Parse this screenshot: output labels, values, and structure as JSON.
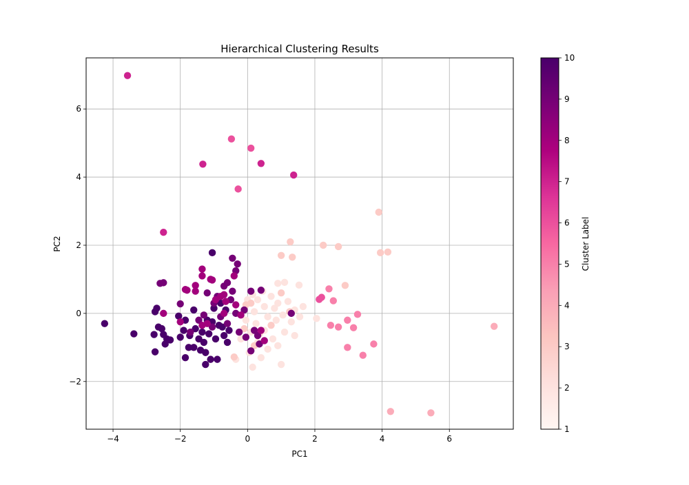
{
  "chart_data": {
    "type": "scatter",
    "title": "Hierarchical Clustering Results",
    "xlabel": "PC1",
    "ylabel": "PC2",
    "xlim": [
      -4.8,
      7.9
    ],
    "ylim": [
      -3.4,
      7.5
    ],
    "xticks": [
      -4,
      -2,
      0,
      2,
      4,
      6
    ],
    "xtick_labels": [
      "−4",
      "−2",
      "0",
      "2",
      "4",
      "6"
    ],
    "yticks": [
      -2,
      0,
      2,
      4,
      6
    ],
    "ytick_labels": [
      "−2",
      "0",
      "2",
      "4",
      "6"
    ],
    "grid": true,
    "colorbar": {
      "label": "Cluster Label",
      "min": 1,
      "max": 10,
      "ticks": [
        1,
        2,
        3,
        4,
        5,
        6,
        7,
        8,
        9,
        10
      ],
      "tick_labels": [
        "1",
        "2",
        "3",
        "4",
        "5",
        "6",
        "7",
        "8",
        "9",
        "10"
      ],
      "colormap": "RdPu",
      "colors": [
        "#fff7f3",
        "#fde0dd",
        "#fcc5c0",
        "#fa9fb5",
        "#f768a1",
        "#dd3497",
        "#ae017e",
        "#7a0177",
        "#49006a"
      ]
    },
    "points": [
      {
        "x": -3.57,
        "y": 6.98,
        "label": 7
      },
      {
        "x": -0.48,
        "y": 5.12,
        "label": 6
      },
      {
        "x": 0.1,
        "y": 4.85,
        "label": 6
      },
      {
        "x": -1.33,
        "y": 4.38,
        "label": 7
      },
      {
        "x": 0.4,
        "y": 4.4,
        "label": 7
      },
      {
        "x": 1.37,
        "y": 4.06,
        "label": 7
      },
      {
        "x": -0.28,
        "y": 3.65,
        "label": 6
      },
      {
        "x": -2.5,
        "y": 2.38,
        "label": 7
      },
      {
        "x": 3.9,
        "y": 2.97,
        "label": 3
      },
      {
        "x": 1.27,
        "y": 2.1,
        "label": 3
      },
      {
        "x": 2.25,
        "y": 2.0,
        "label": 3
      },
      {
        "x": 2.7,
        "y": 1.96,
        "label": 3
      },
      {
        "x": 1.0,
        "y": 1.7,
        "label": 3
      },
      {
        "x": 1.33,
        "y": 1.65,
        "label": 3
      },
      {
        "x": 3.95,
        "y": 1.78,
        "label": 3
      },
      {
        "x": 4.17,
        "y": 1.8,
        "label": 3
      },
      {
        "x": 7.33,
        "y": -0.38,
        "label": 4
      },
      {
        "x": 4.25,
        "y": -2.88,
        "label": 4
      },
      {
        "x": 5.45,
        "y": -2.92,
        "label": 4
      },
      {
        "x": 2.9,
        "y": 0.82,
        "label": 3
      },
      {
        "x": 2.42,
        "y": 0.72,
        "label": 5
      },
      {
        "x": 2.55,
        "y": 0.37,
        "label": 5
      },
      {
        "x": 2.2,
        "y": 0.47,
        "label": 6
      },
      {
        "x": 2.13,
        "y": 0.41,
        "label": 6
      },
      {
        "x": 3.27,
        "y": -0.03,
        "label": 5
      },
      {
        "x": 2.97,
        "y": -0.2,
        "label": 5
      },
      {
        "x": 2.47,
        "y": -0.35,
        "label": 5
      },
      {
        "x": 2.7,
        "y": -0.4,
        "label": 5
      },
      {
        "x": 3.15,
        "y": -0.42,
        "label": 5
      },
      {
        "x": 3.75,
        "y": -0.9,
        "label": 5
      },
      {
        "x": 2.97,
        "y": -1.0,
        "label": 5
      },
      {
        "x": 3.43,
        "y": -1.23,
        "label": 5
      },
      {
        "x": 1.0,
        "y": -1.5,
        "label": 2
      },
      {
        "x": 0.15,
        "y": -1.58,
        "label": 2
      },
      {
        "x": 1.53,
        "y": 0.83,
        "label": 2
      },
      {
        "x": 0.9,
        "y": 0.88,
        "label": 2
      },
      {
        "x": 1.1,
        "y": 0.91,
        "label": 2
      },
      {
        "x": 2.05,
        "y": -0.15,
        "label": 2
      },
      {
        "x": 1.65,
        "y": 0.2,
        "label": 2
      },
      {
        "x": 1.4,
        "y": 0.1,
        "label": 2
      },
      {
        "x": 1.2,
        "y": 0.35,
        "label": 2
      },
      {
        "x": 0.9,
        "y": 0.3,
        "label": 2
      },
      {
        "x": 0.7,
        "y": 0.5,
        "label": 2
      },
      {
        "x": 0.5,
        "y": 0.2,
        "label": 2
      },
      {
        "x": 0.3,
        "y": 0.4,
        "label": 2
      },
      {
        "x": 0.15,
        "y": 0.55,
        "label": 2
      },
      {
        "x": 0.0,
        "y": 0.4,
        "label": 2
      },
      {
        "x": 0.2,
        "y": 0.05,
        "label": 2
      },
      {
        "x": 0.6,
        "y": -0.1,
        "label": 2
      },
      {
        "x": 0.85,
        "y": -0.2,
        "label": 2
      },
      {
        "x": 1.05,
        "y": -0.05,
        "label": 2
      },
      {
        "x": 1.3,
        "y": -0.25,
        "label": 2
      },
      {
        "x": 1.55,
        "y": -0.1,
        "label": 2
      },
      {
        "x": 1.4,
        "y": -0.65,
        "label": 2
      },
      {
        "x": 1.1,
        "y": -0.55,
        "label": 2
      },
      {
        "x": 0.75,
        "y": -0.75,
        "label": 2
      },
      {
        "x": 0.5,
        "y": -0.5,
        "label": 2
      },
      {
        "x": 0.25,
        "y": -0.3,
        "label": 2
      },
      {
        "x": -0.05,
        "y": -0.2,
        "label": 2
      },
      {
        "x": 0.3,
        "y": -0.85,
        "label": 2
      },
      {
        "x": 0.6,
        "y": -1.05,
        "label": 2
      },
      {
        "x": 0.9,
        "y": -0.95,
        "label": 2
      },
      {
        "x": 0.4,
        "y": -1.3,
        "label": 2
      },
      {
        "x": 0.05,
        "y": -1.15,
        "label": 2
      },
      {
        "x": -0.35,
        "y": -1.35,
        "label": 2
      },
      {
        "x": -0.2,
        "y": -0.75,
        "label": 2
      },
      {
        "x": 0.1,
        "y": -0.55,
        "label": 2
      },
      {
        "x": 0.45,
        "y": 0.65,
        "label": 2
      },
      {
        "x": 0.8,
        "y": 0.15,
        "label": 2
      },
      {
        "x": 1.25,
        "y": 0.05,
        "label": 3
      },
      {
        "x": 0.1,
        "y": 0.3,
        "label": 3
      },
      {
        "x": 1.0,
        "y": 0.6,
        "label": 3
      },
      {
        "x": -0.1,
        "y": -0.45,
        "label": 3
      },
      {
        "x": 0.2,
        "y": -0.95,
        "label": 3
      },
      {
        "x": -0.4,
        "y": -1.28,
        "label": 3
      },
      {
        "x": 0.7,
        "y": -0.35,
        "label": 3
      },
      {
        "x": -0.05,
        "y": 0.25,
        "label": 3
      },
      {
        "x": 0.35,
        "y": -0.6,
        "label": 3
      },
      {
        "x": -4.25,
        "y": -0.3,
        "label": 10
      },
      {
        "x": -3.38,
        "y": -0.6,
        "label": 10
      },
      {
        "x": -2.75,
        "y": -1.13,
        "label": 10
      },
      {
        "x": -2.78,
        "y": -0.62,
        "label": 10
      },
      {
        "x": -2.7,
        "y": 0.15,
        "label": 10
      },
      {
        "x": -2.75,
        "y": 0.05,
        "label": 10
      },
      {
        "x": -2.65,
        "y": -0.4,
        "label": 10
      },
      {
        "x": -2.55,
        "y": -0.45,
        "label": 10
      },
      {
        "x": -2.5,
        "y": -0.62,
        "label": 10
      },
      {
        "x": -2.45,
        "y": -0.9,
        "label": 10
      },
      {
        "x": -2.4,
        "y": -0.75,
        "label": 10
      },
      {
        "x": -2.3,
        "y": -0.78,
        "label": 10
      },
      {
        "x": -2.05,
        "y": -0.08,
        "label": 10
      },
      {
        "x": -2.0,
        "y": -0.7,
        "label": 10
      },
      {
        "x": -1.9,
        "y": -0.5,
        "label": 10
      },
      {
        "x": -1.85,
        "y": -0.2,
        "label": 10
      },
      {
        "x": -1.85,
        "y": -1.3,
        "label": 10
      },
      {
        "x": -1.75,
        "y": -1.0,
        "label": 10
      },
      {
        "x": -1.72,
        "y": -0.65,
        "label": 10
      },
      {
        "x": -1.6,
        "y": -1.0,
        "label": 10
      },
      {
        "x": -1.6,
        "y": 0.1,
        "label": 10
      },
      {
        "x": -1.55,
        "y": -0.45,
        "label": 10
      },
      {
        "x": -1.45,
        "y": -0.75,
        "label": 10
      },
      {
        "x": -1.4,
        "y": -1.08,
        "label": 10
      },
      {
        "x": -1.35,
        "y": -0.55,
        "label": 10
      },
      {
        "x": -1.3,
        "y": -0.85,
        "label": 10
      },
      {
        "x": -1.25,
        "y": -1.15,
        "label": 10
      },
      {
        "x": -1.25,
        "y": -1.5,
        "label": 10
      },
      {
        "x": -1.2,
        "y": -0.2,
        "label": 10
      },
      {
        "x": -1.15,
        "y": -0.6,
        "label": 10
      },
      {
        "x": -1.1,
        "y": -1.35,
        "label": 10
      },
      {
        "x": -1.05,
        "y": -0.25,
        "label": 10
      },
      {
        "x": -1.0,
        "y": 0.15,
        "label": 10
      },
      {
        "x": -0.95,
        "y": -0.75,
        "label": 10
      },
      {
        "x": -0.9,
        "y": -1.35,
        "label": 10
      },
      {
        "x": -0.85,
        "y": -0.35,
        "label": 10
      },
      {
        "x": -0.8,
        "y": 0.3,
        "label": 10
      },
      {
        "x": -0.75,
        "y": -0.4,
        "label": 10
      },
      {
        "x": -0.7,
        "y": -0.65,
        "label": 10
      },
      {
        "x": -0.65,
        "y": 0.1,
        "label": 10
      },
      {
        "x": -0.6,
        "y": -0.85,
        "label": 10
      },
      {
        "x": -0.55,
        "y": -0.5,
        "label": 10
      },
      {
        "x": -1.05,
        "y": 1.78,
        "label": 10
      },
      {
        "x": -2.6,
        "y": 0.88,
        "label": 9
      },
      {
        "x": -2.5,
        "y": 0.9,
        "label": 9
      },
      {
        "x": -2.0,
        "y": 0.28,
        "label": 9
      },
      {
        "x": -1.3,
        "y": -0.05,
        "label": 9
      },
      {
        "x": -1.2,
        "y": 0.6,
        "label": 9
      },
      {
        "x": -1.0,
        "y": 0.3,
        "label": 9
      },
      {
        "x": -0.9,
        "y": 0.5,
        "label": 9
      },
      {
        "x": -0.7,
        "y": 0.8,
        "label": 9
      },
      {
        "x": -0.6,
        "y": 0.9,
        "label": 9
      },
      {
        "x": -0.5,
        "y": 0.4,
        "label": 9
      },
      {
        "x": -0.45,
        "y": 1.62,
        "label": 9
      },
      {
        "x": -0.3,
        "y": 1.45,
        "label": 9
      },
      {
        "x": -0.35,
        "y": 1.25,
        "label": 9
      },
      {
        "x": -0.45,
        "y": 0.65,
        "label": 9
      },
      {
        "x": -0.35,
        "y": 0.0,
        "label": 9
      },
      {
        "x": -0.25,
        "y": -0.55,
        "label": 9
      },
      {
        "x": -0.1,
        "y": 0.1,
        "label": 9
      },
      {
        "x": 0.1,
        "y": 0.65,
        "label": 9
      },
      {
        "x": 0.1,
        "y": -1.1,
        "label": 9
      },
      {
        "x": 0.2,
        "y": -0.5,
        "label": 9
      },
      {
        "x": 0.35,
        "y": -0.9,
        "label": 9
      },
      {
        "x": 0.4,
        "y": 0.68,
        "label": 9
      },
      {
        "x": 0.3,
        "y": -0.65,
        "label": 9
      },
      {
        "x": -0.6,
        "y": -0.3,
        "label": 9
      },
      {
        "x": -0.8,
        "y": -0.1,
        "label": 9
      },
      {
        "x": -1.05,
        "y": -0.4,
        "label": 9
      },
      {
        "x": -1.45,
        "y": -0.2,
        "label": 9
      },
      {
        "x": -1.7,
        "y": -0.55,
        "label": 9
      },
      {
        "x": -0.05,
        "y": -0.7,
        "label": 9
      },
      {
        "x": 1.3,
        "y": 0.0,
        "label": 9
      },
      {
        "x": -2.5,
        "y": 0.0,
        "label": 8
      },
      {
        "x": -1.85,
        "y": 0.7,
        "label": 8
      },
      {
        "x": -1.8,
        "y": 0.68,
        "label": 8
      },
      {
        "x": -1.55,
        "y": 0.82,
        "label": 8
      },
      {
        "x": -1.55,
        "y": 0.65,
        "label": 8
      },
      {
        "x": -1.35,
        "y": 1.3,
        "label": 8
      },
      {
        "x": -1.35,
        "y": 1.1,
        "label": 8
      },
      {
        "x": -1.1,
        "y": 1.0,
        "label": 8
      },
      {
        "x": -1.05,
        "y": 0.98,
        "label": 8
      },
      {
        "x": -0.95,
        "y": 0.4,
        "label": 8
      },
      {
        "x": -0.8,
        "y": 0.5,
        "label": 8
      },
      {
        "x": -0.7,
        "y": 0.55,
        "label": 8
      },
      {
        "x": -0.65,
        "y": 0.35,
        "label": 8
      },
      {
        "x": -0.4,
        "y": 1.1,
        "label": 8
      },
      {
        "x": -1.2,
        "y": -0.3,
        "label": 8
      },
      {
        "x": -1.35,
        "y": -0.35,
        "label": 8
      },
      {
        "x": -2.0,
        "y": -0.25,
        "label": 8
      },
      {
        "x": -0.7,
        "y": 0.0,
        "label": 8
      },
      {
        "x": -0.35,
        "y": 0.25,
        "label": 8
      },
      {
        "x": 0.4,
        "y": -0.5,
        "label": 8
      },
      {
        "x": 0.5,
        "y": -0.8,
        "label": 8
      },
      {
        "x": -0.2,
        "y": -0.05,
        "label": 8
      }
    ]
  }
}
